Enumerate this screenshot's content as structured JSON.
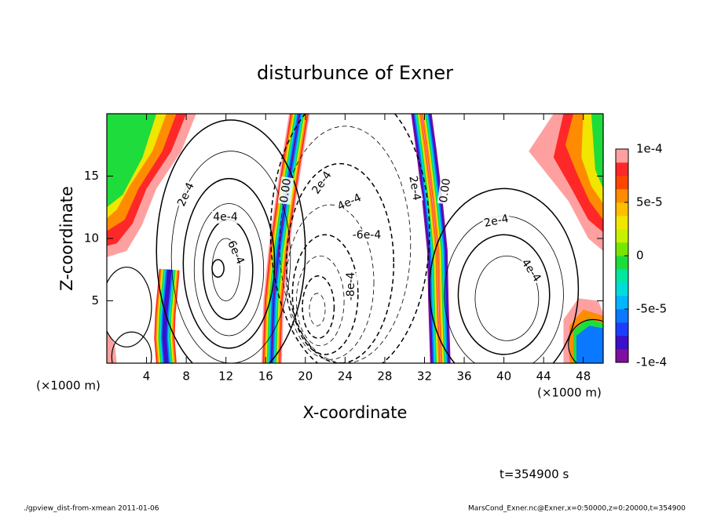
{
  "chart_data": {
    "type": "contour",
    "title": "disturbunce of Exner",
    "xlabel": "X-coordinate",
    "ylabel": "Z-coordinate",
    "x_unit_labels": [
      "(×1000 m)",
      "(×1000 m)"
    ],
    "xlim": [
      0,
      50
    ],
    "ylim": [
      0,
      20
    ],
    "xticks": [
      4,
      8,
      12,
      16,
      20,
      24,
      28,
      32,
      36,
      40,
      44,
      48
    ],
    "yticks": [
      5,
      10,
      15
    ],
    "contour_labels": [
      "2e-4",
      "4e-4",
      "6e-4",
      "0.00",
      "2e-4",
      "4e-4",
      "-6e-4",
      "-8e-4",
      "2e-4",
      "0.00",
      "2e-4",
      "4e-4"
    ],
    "colorbar": {
      "lim": [
        -0.0001,
        0.0001
      ],
      "ticks": [
        {
          "value": 0.0001,
          "label": "1e-4"
        },
        {
          "value": 5e-05,
          "label": "5e-5"
        },
        0,
        {
          "value": -5e-05,
          "label": "-5e-5"
        },
        {
          "value": -0.0001,
          "label": "-1e-4"
        }
      ],
      "colors": [
        "#7f0f9f",
        "#3c0fc8",
        "#1e3cff",
        "#0a78ff",
        "#00b4ff",
        "#00dcdc",
        "#00e6a0",
        "#1edc3c",
        "#78e600",
        "#c8f000",
        "#f0e600",
        "#ffbe00",
        "#ff8c00",
        "#ff4600",
        "#ff2828",
        "#ffa0a0"
      ]
    },
    "time_label": "t=354900 s",
    "footer_left": "./gpview_dist-from-xmean  2011-01-06",
    "footer_right": "MarsCond_Exner.nc@Exner,x=0:50000,z=0:20000,t=354900"
  }
}
